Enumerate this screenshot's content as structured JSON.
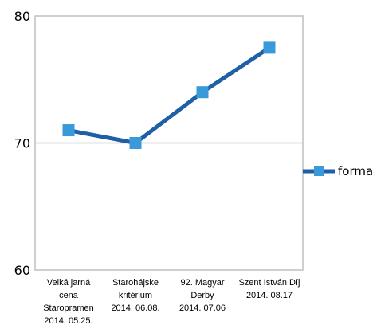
{
  "chart_data": {
    "type": "line",
    "title": "",
    "xlabel": "",
    "ylabel": "",
    "ylim": [
      60,
      80
    ],
    "yticks": [
      "60",
      "70",
      "80"
    ],
    "grid": "horizontal major gridlines",
    "legend_position": "right",
    "categories": [
      "Velká jarná cena Staropramen 2014. 05.25.",
      "Starohájske kritérium 2014. 06.08.",
      "92. Magyar Derby 2014. 07.06",
      "Szent István Díj 2014. 08.17"
    ],
    "category_lines": [
      [
        "Velká jarná",
        "cena",
        "Staropramen",
        "2014. 05.25."
      ],
      [
        "Starohájske",
        "kritérium",
        "2014. 06.08."
      ],
      [
        "92. Magyar",
        "Derby",
        "2014. 07.06"
      ],
      [
        "Szent István Díj",
        "2014. 08.17"
      ]
    ],
    "series": [
      {
        "name": "forma",
        "values": [
          71,
          70,
          74,
          77.5
        ],
        "color": "#1f5fa6",
        "marker_color": "#3a9ad9",
        "marker": "square"
      }
    ]
  }
}
